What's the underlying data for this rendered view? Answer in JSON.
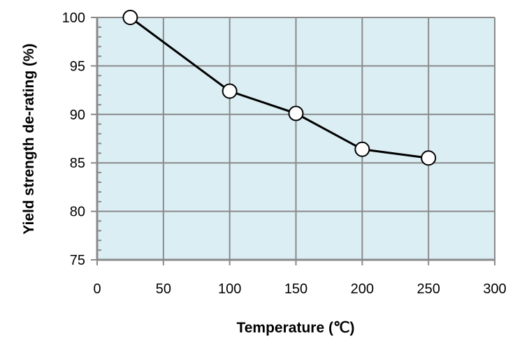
{
  "chart_data": {
    "type": "line",
    "title": "",
    "xlabel": "Temperature (℃)",
    "ylabel": "Yield strength de-rating (%)",
    "xlim": [
      0,
      300
    ],
    "ylim": [
      75,
      100
    ],
    "xticks": [
      0,
      50,
      100,
      150,
      200,
      250,
      300
    ],
    "yticks": [
      75,
      80,
      85,
      90,
      95,
      100
    ],
    "grid": true,
    "colors": {
      "plot_bg": "#dbeef4",
      "grid": "#8a8a8a",
      "line": "#000000",
      "marker_fill": "#ffffff"
    },
    "series": [
      {
        "name": "Yield strength de-rating",
        "x": [
          25,
          100,
          150,
          200,
          250
        ],
        "y": [
          100,
          92.4,
          90.1,
          86.4,
          85.5
        ]
      }
    ]
  }
}
